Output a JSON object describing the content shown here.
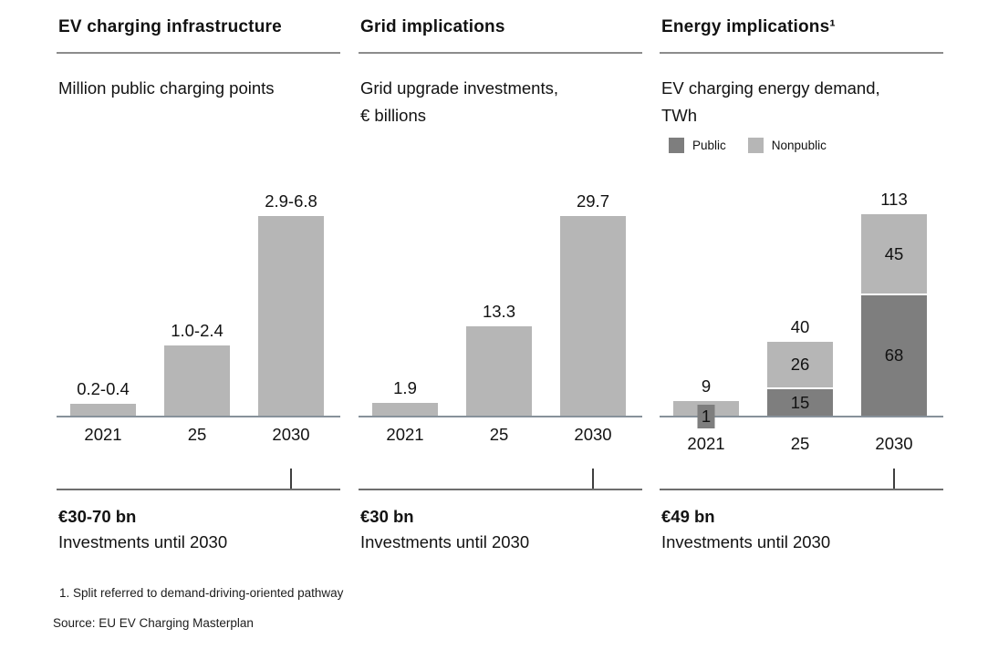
{
  "panels": [
    {
      "title": "EV charging infrastructure",
      "subtitle": "Million public charging points",
      "callout": {
        "value": "€30-70 bn",
        "label": "Investments until 2030"
      }
    },
    {
      "title": "Grid implications",
      "subtitle": "Grid upgrade investments,\n€ billions",
      "callout": {
        "value": "€30 bn",
        "label": "Investments until 2030"
      }
    },
    {
      "title": "Energy implications¹",
      "subtitle": "EV charging energy demand,\nTWh",
      "callout": {
        "value": "€49 bn",
        "label": "Investments until 2030"
      }
    }
  ],
  "chart_data": [
    {
      "type": "bar",
      "title": "EV charging infrastructure",
      "ylabel": "Million public charging points",
      "categories": [
        "2021",
        "25",
        "2030"
      ],
      "bar_labels": [
        "0.2-0.4",
        "1.0-2.4",
        "2.9-6.8"
      ],
      "values_upper": [
        0.4,
        2.4,
        6.8
      ],
      "ylim": [
        0,
        6.8
      ],
      "bar_color": "#b6b6b6",
      "grid": false,
      "legend_position": "none"
    },
    {
      "type": "bar",
      "title": "Grid implications",
      "ylabel": "Grid upgrade investments, € billions",
      "categories": [
        "2021",
        "25",
        "2030"
      ],
      "bar_labels": [
        "1.9",
        "13.3",
        "29.7"
      ],
      "values": [
        1.9,
        13.3,
        29.7
      ],
      "ylim": [
        0,
        29.7
      ],
      "bar_color": "#b6b6b6",
      "grid": false,
      "legend_position": "none"
    },
    {
      "type": "stacked-bar",
      "title": "Energy implications¹",
      "ylabel": "EV charging energy demand, TWh",
      "categories": [
        "2021",
        "25",
        "2030"
      ],
      "legend": [
        "Public",
        "Nonpublic"
      ],
      "series": [
        {
          "name": "Public",
          "values": [
            1,
            15,
            68
          ],
          "color": "#7e7e7e"
        },
        {
          "name": "Nonpublic",
          "values": [
            8,
            26,
            45
          ],
          "color": "#b6b6b6"
        }
      ],
      "totals_labels": [
        "9",
        "40",
        "113"
      ],
      "segment_labels": {
        "Public": [
          "1",
          "15",
          "68"
        ],
        "Nonpublic": [
          "",
          "26",
          "45"
        ]
      },
      "ylim": [
        0,
        113
      ],
      "grid": false,
      "legend_position": "top-left"
    }
  ],
  "footnotes": [
    "1. Split referred to demand-driving-oriented pathway",
    "Source: EU EV Charging Masterplan"
  ]
}
